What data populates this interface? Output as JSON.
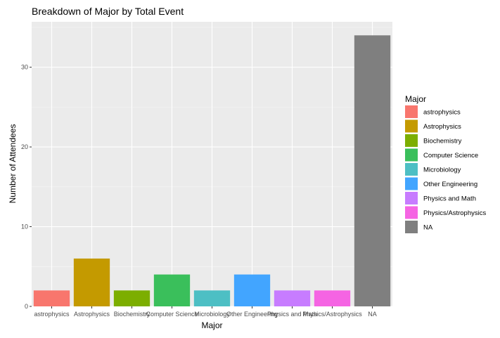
{
  "chart_data": {
    "type": "bar",
    "title": "Breakdown of Major by Total Event",
    "xlabel": "Major",
    "ylabel": "Number of Attendees",
    "categories": [
      "astrophysics",
      "Astrophysics",
      "Biochemistry",
      "Computer Science",
      "Microbiology",
      "Other Engineering",
      "Physics and Math",
      "Physics/Astrophysics",
      "NA"
    ],
    "values": [
      2,
      6,
      2,
      4,
      2,
      4,
      2,
      2,
      34
    ],
    "colors": [
      "#F8766D",
      "#C49A00",
      "#7CAE00",
      "#3ABF5B",
      "#4DBFC4",
      "#42A5FF",
      "#C77CFF",
      "#F564E3",
      "#7F7F7F"
    ],
    "ylim": [
      0,
      35.7
    ],
    "yticks": [
      0,
      10,
      20,
      30
    ],
    "grid": true,
    "panel_background": "#EBEBEB",
    "legend": {
      "title": "Major",
      "position": "right",
      "entries": [
        "astrophysics",
        "Astrophysics",
        "Biochemistry",
        "Computer Science",
        "Microbiology",
        "Other Engineering",
        "Physics and Math",
        "Physics/Astrophysics",
        "NA"
      ]
    }
  }
}
